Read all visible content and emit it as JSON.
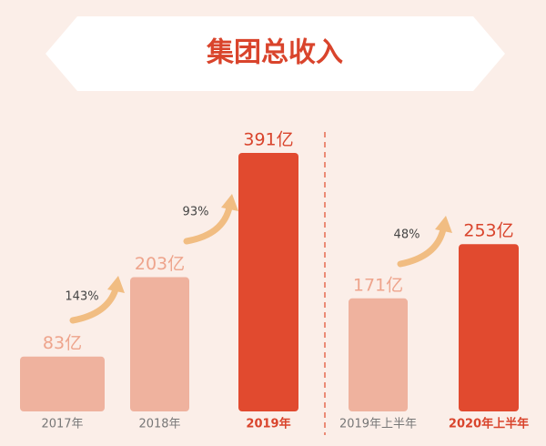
{
  "chart_data": {
    "type": "bar",
    "title": "集团总收入",
    "categories": [
      "2017年",
      "2018年",
      "2019年",
      "2019年上半年",
      "2020年上半年"
    ],
    "values": [
      83,
      203,
      391,
      171,
      253
    ],
    "value_labels": [
      "83亿",
      "203亿",
      "391亿",
      "171亿",
      "253亿"
    ],
    "colors": [
      "#efb29e",
      "#efb29e",
      "#e14a2f",
      "#efb29e",
      "#e14a2f"
    ],
    "annotations": [
      "143%",
      "93%",
      "48%"
    ]
  }
}
